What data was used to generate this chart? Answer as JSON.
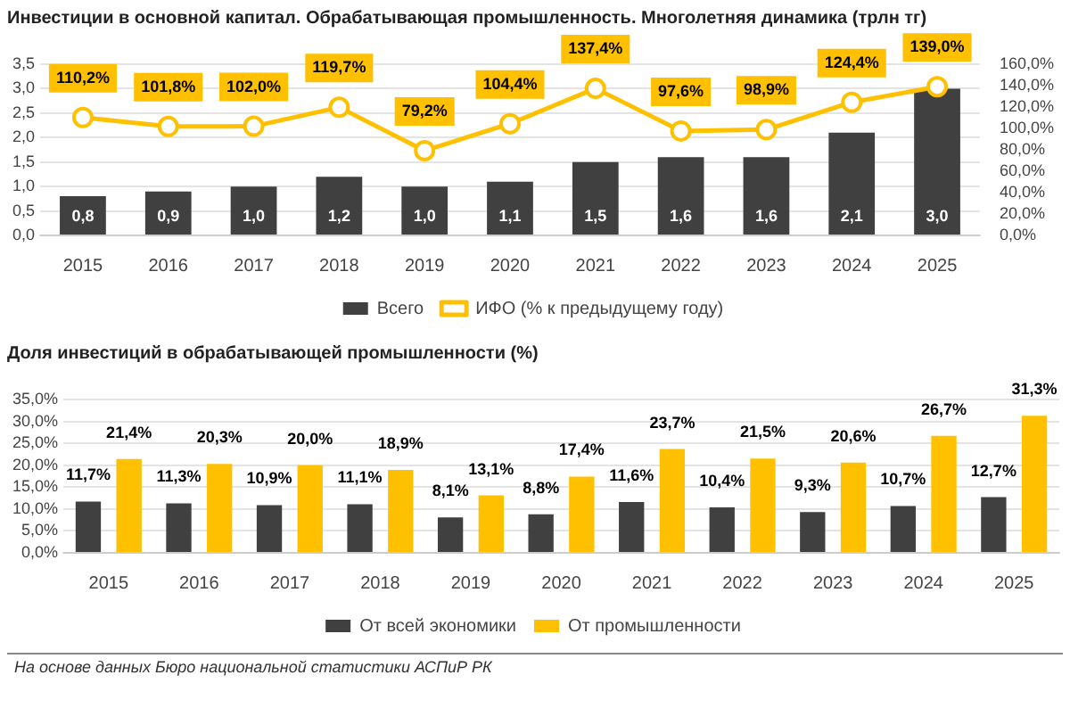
{
  "chart_data": [
    {
      "type": "bar",
      "title": "Инвестиции в основной капитал. Обрабатывающая промышленность. Многолетняя динамика (трлн тг)",
      "categories": [
        "2015",
        "2016",
        "2017",
        "2018",
        "2019",
        "2020",
        "2021",
        "2022",
        "2023",
        "2024",
        "2025"
      ],
      "series": [
        {
          "name": "Всего",
          "type": "bar",
          "color": "#404040",
          "values": [
            0.8,
            0.9,
            1.0,
            1.2,
            1.0,
            1.1,
            1.5,
            1.6,
            1.6,
            2.1,
            3.0
          ],
          "value_labels": [
            "0,8",
            "0,9",
            "1,0",
            "1,2",
            "1,0",
            "1,1",
            "1,5",
            "1,6",
            "1,6",
            "2,1",
            "3,0"
          ]
        },
        {
          "name": "ИФО (% к предыдущему году)",
          "type": "line",
          "axis": "y2",
          "color": "#ffc000",
          "marker": "circle",
          "values": [
            110.2,
            101.8,
            102.0,
            119.7,
            79.2,
            104.4,
            137.4,
            97.6,
            98.9,
            124.4,
            139.0
          ],
          "value_labels": [
            "110,2%",
            "101,8%",
            "102,0%",
            "119,7%",
            "79,2%",
            "104,4%",
            "137,4%",
            "97,6%",
            "98,9%",
            "124,4%",
            "139,0%"
          ]
        }
      ],
      "ylim": [
        0,
        3.5
      ],
      "yticks": [
        {
          "value": 0,
          "label": "0,0"
        },
        {
          "value": 0.5,
          "label": "0,5"
        },
        {
          "value": 1,
          "label": "1,0"
        },
        {
          "value": 1.5,
          "label": "1,5"
        },
        {
          "value": 2,
          "label": "2,0"
        },
        {
          "value": 2.5,
          "label": "2,5"
        },
        {
          "value": 3,
          "label": "3,0"
        },
        {
          "value": 3.5,
          "label": "3,5"
        }
      ],
      "y2lim": [
        0,
        160
      ],
      "y2ticks": [
        {
          "value": 0,
          "label": "0,0%"
        },
        {
          "value": 20,
          "label": "20,0%"
        },
        {
          "value": 40,
          "label": "40,0%"
        },
        {
          "value": 60,
          "label": "60,0%"
        },
        {
          "value": 80,
          "label": "80,0%"
        },
        {
          "value": 100,
          "label": "100,0%"
        },
        {
          "value": 120,
          "label": "120,0%"
        },
        {
          "value": 140,
          "label": "140,0%"
        },
        {
          "value": 160,
          "label": "160,0%"
        }
      ],
      "grid": "y",
      "legend": "bottom"
    },
    {
      "type": "bar",
      "title": "Доля инвестиций в обрабатывающей промышленности (%)",
      "categories": [
        "2015",
        "2016",
        "2017",
        "2018",
        "2019",
        "2020",
        "2021",
        "2022",
        "2023",
        "2024",
        "2025"
      ],
      "series": [
        {
          "name": "От всей экономики",
          "color": "#404040",
          "values": [
            11.7,
            11.3,
            10.9,
            11.1,
            8.1,
            8.8,
            11.6,
            10.4,
            9.3,
            10.7,
            12.7
          ],
          "value_labels": [
            "11,7%",
            "11,3%",
            "10,9%",
            "11,1%",
            "8,1%",
            "8,8%",
            "11,6%",
            "10,4%",
            "9,3%",
            "10,7%",
            "12,7%"
          ]
        },
        {
          "name": "От промышленности",
          "color": "#ffc000",
          "values": [
            21.4,
            20.3,
            20.0,
            18.9,
            13.1,
            17.4,
            23.7,
            21.5,
            20.6,
            26.7,
            31.3
          ],
          "value_labels": [
            "21,4%",
            "20,3%",
            "20,0%",
            "18,9%",
            "13,1%",
            "17,4%",
            "23,7%",
            "21,5%",
            "20,6%",
            "26,7%",
            "31,3%"
          ]
        }
      ],
      "ylim": [
        0,
        35
      ],
      "yticks": [
        {
          "value": 0,
          "label": "0,0%"
        },
        {
          "value": 5,
          "label": "5,0%"
        },
        {
          "value": 10,
          "label": "10,0%"
        },
        {
          "value": 15,
          "label": "15,0%"
        },
        {
          "value": 20,
          "label": "20,0%"
        },
        {
          "value": 25,
          "label": "25,0%"
        },
        {
          "value": 30,
          "label": "30,0%"
        },
        {
          "value": 35,
          "label": "35,0%"
        }
      ],
      "grid": "y",
      "legend": "bottom",
      "annotations": [
        "На основе данных Бюро национальной статистики АСПиР РК"
      ]
    }
  ]
}
